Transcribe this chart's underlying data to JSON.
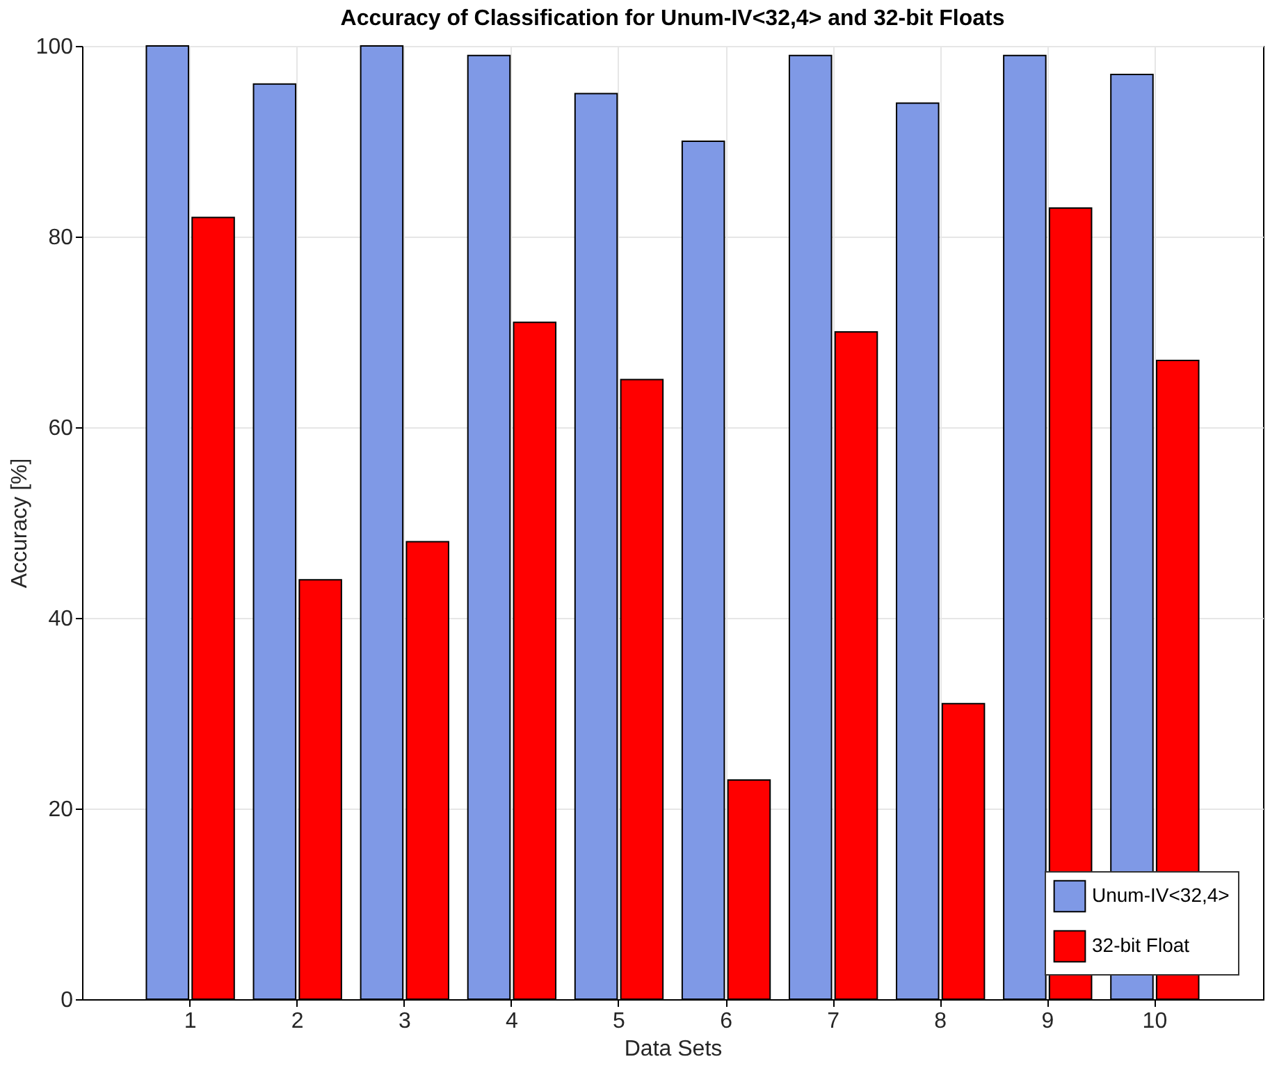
{
  "chart_data": {
    "type": "bar",
    "title": "Accuracy of Classification for Unum-IV<32,4> and 32-bit Floats",
    "xlabel": "Data Sets",
    "ylabel": "Accuracy [%]",
    "categories": [
      "1",
      "2",
      "3",
      "4",
      "5",
      "6",
      "7",
      "8",
      "9",
      "10"
    ],
    "series": [
      {
        "name": "Unum-IV<32,4>",
        "color": "#7f99e6",
        "values": [
          100,
          96,
          100,
          99,
          95,
          90,
          99,
          94,
          99,
          97
        ]
      },
      {
        "name": "32-bit Float",
        "color": "#ff0000",
        "values": [
          82,
          44,
          48,
          71,
          65,
          23,
          70,
          31,
          83,
          67
        ]
      }
    ],
    "ylim": [
      0,
      100
    ],
    "yticks": [
      0,
      20,
      40,
      60,
      80,
      100
    ],
    "grid": true,
    "legend": "bottom right"
  }
}
